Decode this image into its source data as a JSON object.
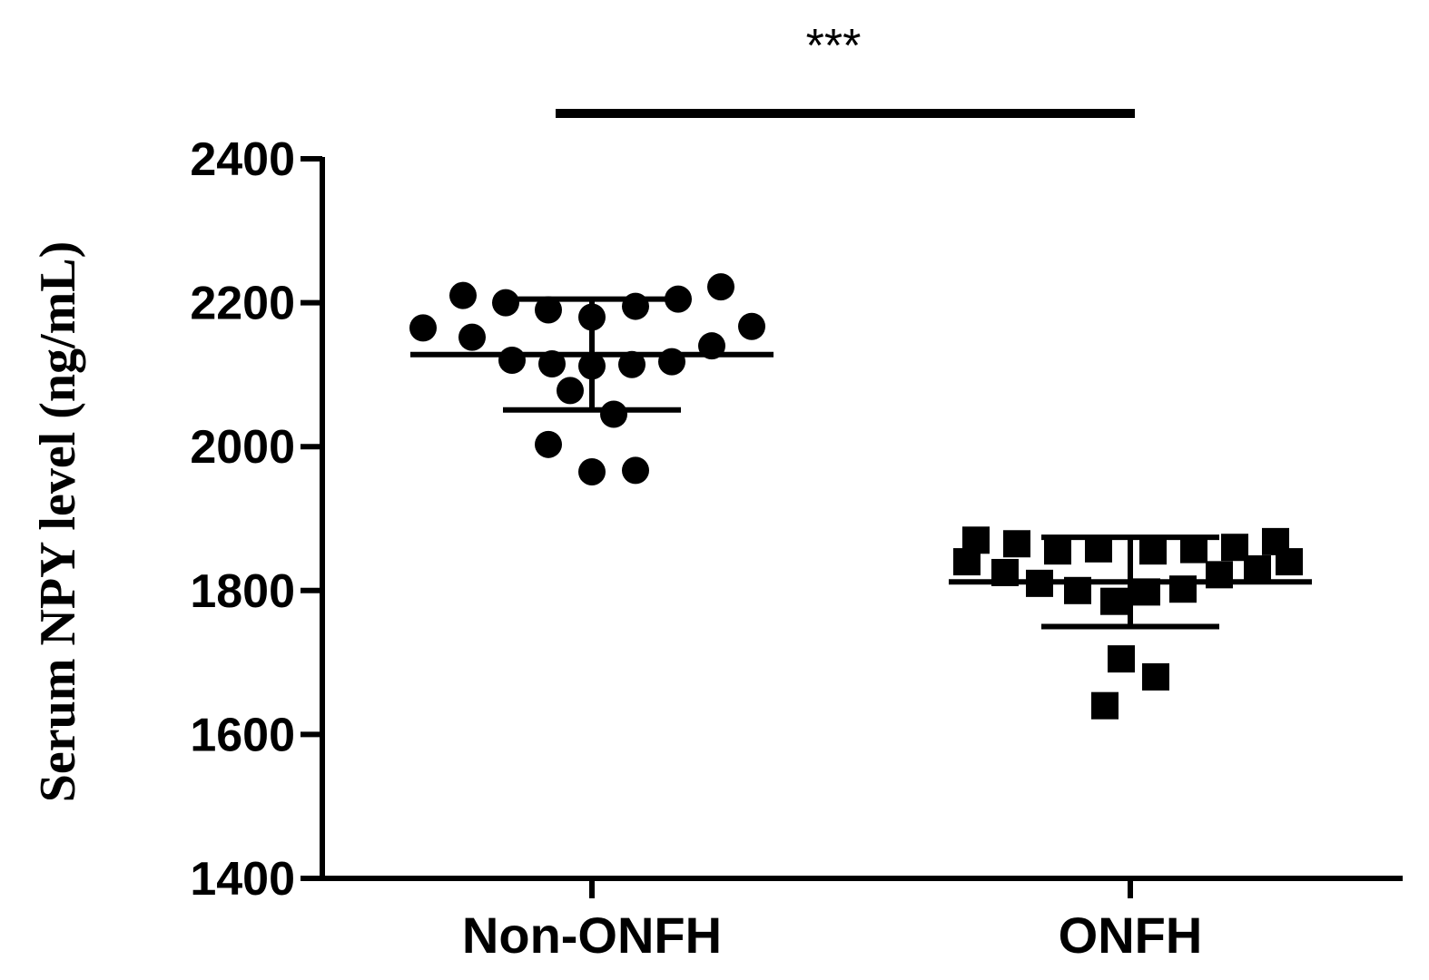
{
  "chart_data": {
    "type": "scatter",
    "title": "",
    "xlabel": "",
    "ylabel": "Serum NPY level (ng/mL)",
    "ylim": [
      1400,
      2400
    ],
    "yticks": [
      1400,
      1600,
      1800,
      2000,
      2200,
      2400
    ],
    "categories": [
      "Non-ONFH",
      "ONFH"
    ],
    "grid": false,
    "legend": "none",
    "series": [
      {
        "marker": "circle",
        "values": [
          2210,
          2200,
          2190,
          2180,
          2195,
          2205,
          2222,
          2165,
          2152,
          2120,
          2115,
          2112,
          2114,
          2118,
          2140,
          2167,
          2078,
          2045,
          2003,
          1965,
          1967
        ],
        "mean": 2128,
        "sd": 77
      },
      {
        "marker": "square",
        "values": [
          1870,
          1865,
          1855,
          1858,
          1855,
          1857,
          1860,
          1868,
          1840,
          1825,
          1810,
          1800,
          1785,
          1798,
          1802,
          1822,
          1830,
          1840,
          1705,
          1680,
          1640
        ],
        "mean": 1812,
        "sd": 62
      }
    ],
    "significance": {
      "between": [
        "Non-ONFH",
        "ONFH"
      ],
      "label": "***"
    }
  },
  "colors": {
    "ink": "#000000",
    "background": "#ffffff"
  }
}
